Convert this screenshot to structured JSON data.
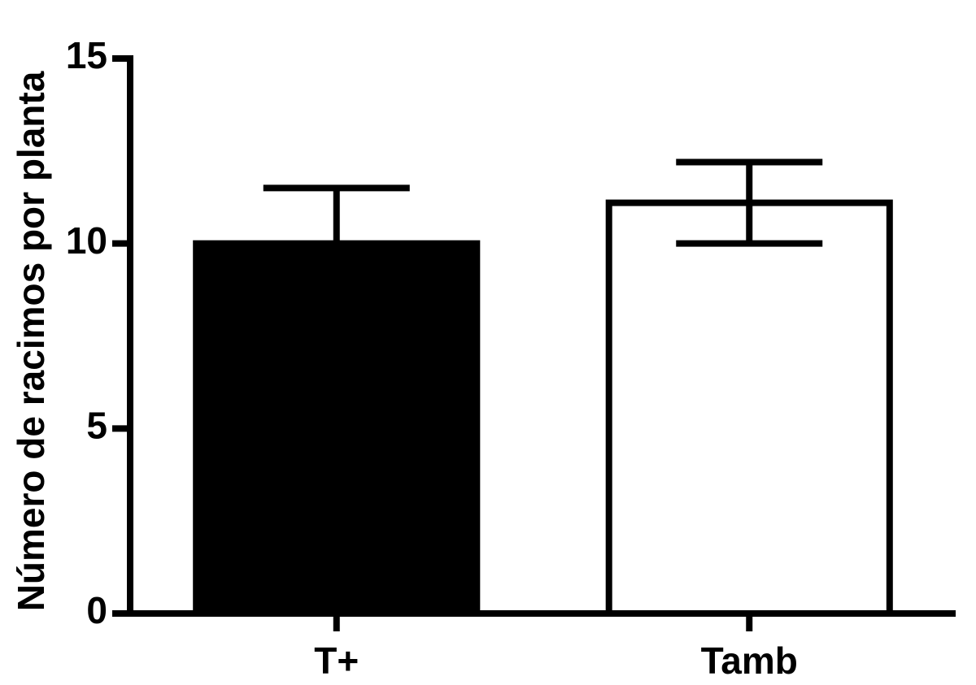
{
  "chart_data": {
    "type": "bar",
    "y_label": "Número de racimos por planta",
    "categories": [
      "T+",
      "Tamb"
    ],
    "values": [
      10.0,
      11.1
    ],
    "errors": [
      1.5,
      1.1
    ],
    "colors": [
      "#000000",
      "#ffffff"
    ],
    "edge_color": "#000000",
    "ylim": [
      0,
      15
    ],
    "yticks": [
      0,
      5,
      10,
      15
    ],
    "grid": false
  }
}
